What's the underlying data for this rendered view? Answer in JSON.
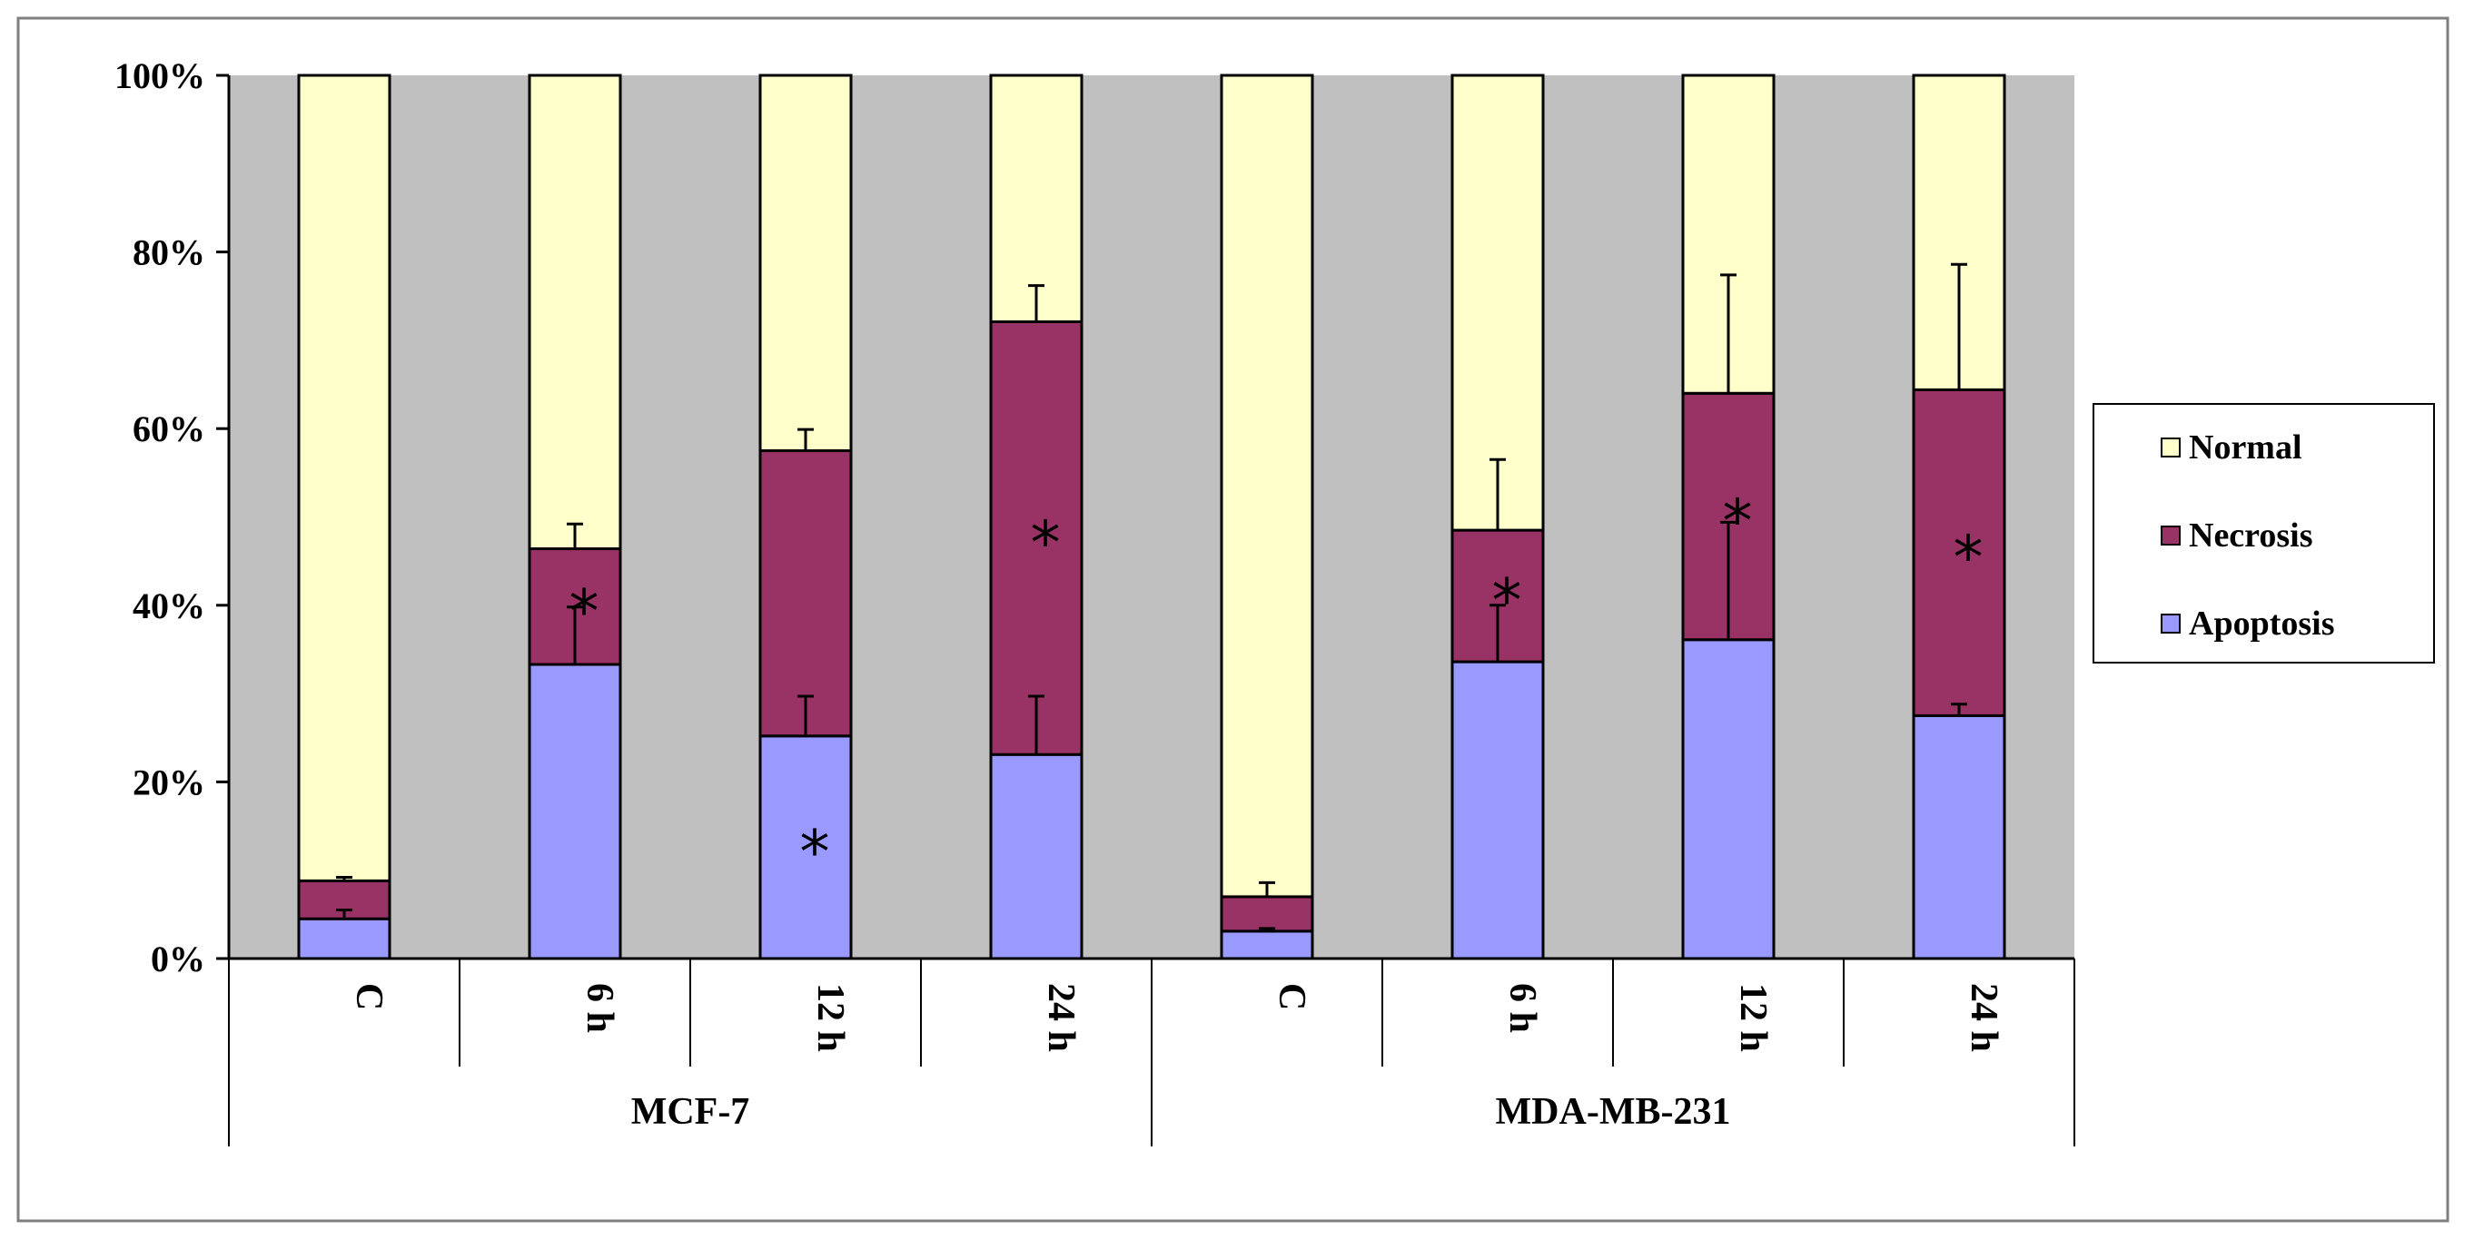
{
  "chart_data": {
    "type": "bar",
    "stacked": true,
    "normalized_percent": true,
    "y_axis": {
      "ylim": [
        0,
        100
      ],
      "ticks": [
        0,
        20,
        40,
        60,
        80,
        100
      ],
      "tick_labels": [
        "0%",
        "20%",
        "40%",
        "60%",
        "80%",
        "100%"
      ]
    },
    "grid": false,
    "plot_background": "#c0c0c0",
    "categories": [
      "C",
      "6 h",
      "12 h",
      "24 h",
      "C",
      "6 h",
      "12 h",
      "24 h"
    ],
    "groups": [
      {
        "label": "MCF-7",
        "category_indices": [
          0,
          1,
          2,
          3
        ]
      },
      {
        "label": "MDA-MB-231",
        "category_indices": [
          4,
          5,
          6,
          7
        ]
      }
    ],
    "series": [
      {
        "name": "Apoptosis",
        "color": "#9999ff",
        "values": [
          4.5,
          33.3,
          25.2,
          23.1,
          3.1,
          33.6,
          36.1,
          27.5
        ],
        "error_plus": [
          1.0,
          6.5,
          4.5,
          6.6,
          0.3,
          6.4,
          13.3,
          1.3
        ]
      },
      {
        "name": "Necrosis",
        "color": "#993366",
        "values": [
          4.3,
          13.1,
          32.3,
          49.0,
          3.9,
          14.9,
          27.9,
          36.9
        ],
        "error_plus": [
          0.4,
          2.8,
          2.4,
          4.1,
          1.6,
          8.0,
          13.4,
          14.2
        ]
      },
      {
        "name": "Normal",
        "color": "#ffffcc",
        "values": [
          91.2,
          53.6,
          42.5,
          27.9,
          93.0,
          51.5,
          36.0,
          35.6
        ]
      }
    ],
    "significance_marks": [
      {
        "category_index": 1,
        "series": "Necrosis",
        "label": "*"
      },
      {
        "category_index": 2,
        "series": "Apoptosis",
        "label": "*"
      },
      {
        "category_index": 3,
        "series": "Necrosis",
        "label": "*"
      },
      {
        "category_index": 5,
        "series": "Necrosis",
        "label": "*"
      },
      {
        "category_index": 6,
        "series": "Necrosis",
        "label": "*"
      },
      {
        "category_index": 7,
        "series": "Necrosis",
        "label": "*"
      }
    ],
    "legend": {
      "position": "right",
      "entries_top_to_bottom": [
        "Normal",
        "Necrosis",
        "Apoptosis"
      ]
    }
  }
}
